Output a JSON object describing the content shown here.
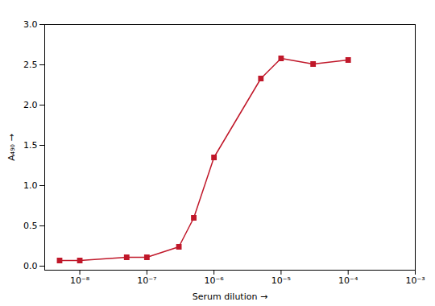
{
  "chart_data": {
    "type": "line",
    "x": [
      5e-09,
      1e-08,
      5e-08,
      1e-07,
      3e-07,
      5e-07,
      1e-06,
      5e-06,
      1e-05,
      3e-05,
      0.0001
    ],
    "values": [
      0.07,
      0.07,
      0.11,
      0.11,
      0.24,
      0.6,
      1.35,
      2.33,
      2.58,
      2.51,
      2.56
    ],
    "color": "#c0182a",
    "marker": "square",
    "xlabel": "Serum dilution",
    "ylabel": "A₄₉₀",
    "log": "x",
    "xlim": [
      3e-09,
      0.001
    ],
    "xticks": [
      {
        "value": 1e-08,
        "label": "10⁻⁸"
      },
      {
        "value": 1e-07,
        "label": "10⁻⁷"
      },
      {
        "value": 1e-06,
        "label": "10⁻⁶"
      },
      {
        "value": 1e-05,
        "label": "10⁻⁵"
      },
      {
        "value": 0.0001,
        "label": "10⁻⁴"
      },
      {
        "value": 0.001,
        "label": "10⁻³"
      }
    ],
    "ylim": [
      -0.05,
      3.0
    ],
    "yticks": [
      {
        "value": 0.0,
        "label": "0.0"
      },
      0.5,
      {
        "value": 1.0,
        "label": "1.0"
      },
      1.5,
      {
        "value": 2.0,
        "label": "2.0"
      },
      2.5,
      {
        "value": 3.0,
        "label": "3.0"
      }
    ],
    "grid": false
  }
}
